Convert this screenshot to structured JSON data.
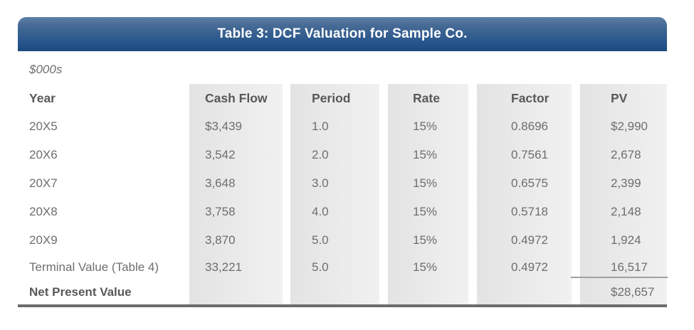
{
  "title": "Table 3: DCF Valuation for Sample Co.",
  "units_label": "$000s",
  "columns": {
    "year": "Year",
    "cash_flow": "Cash Flow",
    "period": "Period",
    "rate": "Rate",
    "factor": "Factor",
    "pv": "PV"
  },
  "rows": [
    {
      "year": "20X5",
      "cash_flow": "$3,439",
      "period": "1.0",
      "rate": "15%",
      "factor": "0.8696",
      "pv": "$2,990"
    },
    {
      "year": "20X6",
      "cash_flow": "3,542",
      "period": "2.0",
      "rate": "15%",
      "factor": "0.7561",
      "pv": "2,678"
    },
    {
      "year": "20X7",
      "cash_flow": "3,648",
      "period": "3.0",
      "rate": "15%",
      "factor": "0.6575",
      "pv": "2,399"
    },
    {
      "year": "20X8",
      "cash_flow": "3,758",
      "period": "4.0",
      "rate": "15%",
      "factor": "0.5718",
      "pv": "2,148"
    },
    {
      "year": "20X9",
      "cash_flow": "3,870",
      "period": "5.0",
      "rate": "15%",
      "factor": "0.4972",
      "pv": "1,924"
    },
    {
      "year": "Terminal Value (Table 4)",
      "cash_flow": "33,221",
      "period": "5.0",
      "rate": "15%",
      "factor": "0.4972",
      "pv": "16,517"
    }
  ],
  "total": {
    "label": "Net Present Value",
    "pv": "$28,657"
  },
  "colors": {
    "page_bg": "#ffffff",
    "title_grad_top": "#5d80a6",
    "title_grad_bottom": "#1c4a80",
    "title_text": "#ffffff",
    "band_dark": "#e3e3e3",
    "band_light": "#f1f1f1",
    "header_text": "#57585a",
    "body_text": "#6d6e71",
    "rule_gray": "#a0a0a0",
    "bottom_border": "#6c6c6c"
  },
  "chart_data": {
    "type": "table",
    "title": "Table 3: DCF Valuation for Sample Co.",
    "units": "$000s",
    "columns": [
      "Year",
      "Cash Flow",
      "Period",
      "Rate",
      "Factor",
      "PV"
    ],
    "rows": [
      [
        "20X5",
        "$3,439",
        "1.0",
        "15%",
        "0.8696",
        "$2,990"
      ],
      [
        "20X6",
        "3,542",
        "2.0",
        "15%",
        "0.7561",
        "2,678"
      ],
      [
        "20X7",
        "3,648",
        "3.0",
        "15%",
        "0.6575",
        "2,399"
      ],
      [
        "20X8",
        "3,758",
        "4.0",
        "15%",
        "0.5718",
        "2,148"
      ],
      [
        "20X9",
        "3,870",
        "5.0",
        "15%",
        "0.4972",
        "1,924"
      ],
      [
        "Terminal Value (Table 4)",
        "33,221",
        "5.0",
        "15%",
        "0.4972",
        "16,517"
      ],
      [
        "Net Present Value",
        "",
        "",
        "",
        "",
        "$28,657"
      ]
    ]
  }
}
